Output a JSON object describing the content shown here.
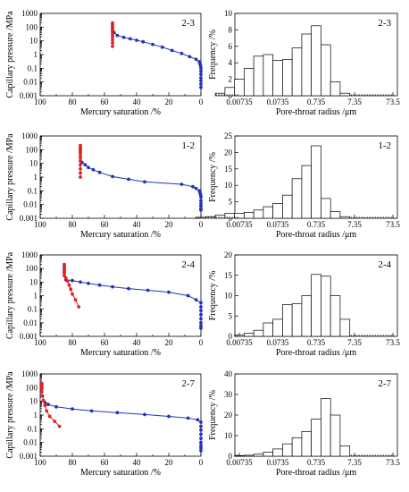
{
  "figure": {
    "left_ylabel": "Capillary pressure /MPa",
    "left_xlabel": "Mercury saturation /%",
    "right_ylabel": "Frequency /%",
    "right_xlabel": "Pore-throat radius /μm",
    "colors": {
      "drainage": "#dd2222",
      "imbibition": "#2233bb",
      "axis": "#000000"
    }
  },
  "chart_data": [
    {
      "type": "line",
      "sample": "2-3",
      "xlabel": "Mercury saturation /%",
      "ylabel": "Capillary pressure /MPa",
      "xlim": [
        100,
        0
      ],
      "ylim": [
        0.001,
        1000
      ],
      "yscale": "log",
      "xticks": [
        "100",
        "80",
        "60",
        "40",
        "20",
        "0"
      ],
      "yticks": [
        "1000",
        "100",
        "10",
        "1",
        "0.1",
        "0.01",
        "0.001"
      ],
      "series": [
        {
          "color": "#2233bb",
          "x": [
            54,
            52,
            48,
            44,
            40,
            36,
            30,
            24,
            18,
            12,
            7,
            3,
            1,
            0.5,
            0.2,
            0,
            0,
            0,
            0,
            0,
            0,
            0
          ],
          "y": [
            40,
            25,
            18,
            14,
            11,
            8.5,
            5.5,
            3.5,
            2,
            1.2,
            0.7,
            0.45,
            0.3,
            0.2,
            0.15,
            0.1,
            0.06,
            0.035,
            0.02,
            0.012,
            0.007,
            0.004
          ]
        },
        {
          "color": "#dd2222",
          "x": [
            55,
            55,
            55,
            55,
            55,
            55,
            55,
            55,
            55,
            55,
            55
          ],
          "y": [
            200,
            150,
            110,
            80,
            60,
            45,
            30,
            20,
            12,
            7,
            4
          ]
        }
      ]
    },
    {
      "type": "bar",
      "sample": "2-3",
      "xlabel": "Pore-throat radius /μm",
      "ylabel": "Frequency /%",
      "xticks": [
        "0.00735",
        "0.0735",
        "0.735",
        "7.35",
        "73.5"
      ],
      "ylim": [
        0,
        10
      ],
      "yticks": [
        "0",
        "2",
        "4",
        "6",
        "8",
        "10"
      ],
      "values": [
        0.3,
        1,
        2,
        3.3,
        4.8,
        5,
        4.3,
        4.4,
        5.8,
        7.5,
        8.5,
        6.2,
        1.7,
        0.3
      ]
    },
    {
      "type": "line",
      "sample": "1-2",
      "xlabel": "Mercury saturation /%",
      "ylabel": "Capillary pressure /MPa",
      "xlim": [
        100,
        0
      ],
      "ylim": [
        0.001,
        1000
      ],
      "yscale": "log",
      "xticks": [
        "100",
        "80",
        "60",
        "40",
        "20",
        "0"
      ],
      "yticks": [
        "1000",
        "100",
        "10",
        "1",
        "0.1",
        "0.01",
        "0.001"
      ],
      "series": [
        {
          "color": "#2233bb",
          "x": [
            74,
            72,
            70,
            67,
            63,
            55,
            45,
            35,
            12,
            5,
            3,
            1,
            0.5,
            0.2,
            0,
            0,
            0,
            0,
            0,
            0
          ],
          "y": [
            12,
            8,
            5,
            3.5,
            2.2,
            1.1,
            0.7,
            0.45,
            0.3,
            0.2,
            0.15,
            0.1,
            0.07,
            0.05,
            0.035,
            0.02,
            0.012,
            0.008,
            0.005,
            0.004
          ]
        },
        {
          "color": "#dd2222",
          "x": [
            75,
            75,
            75,
            75,
            75,
            75,
            75,
            75,
            75,
            75,
            75,
            75
          ],
          "y": [
            200,
            150,
            110,
            80,
            60,
            40,
            25,
            15,
            8,
            4,
            2,
            1
          ]
        }
      ]
    },
    {
      "type": "bar",
      "sample": "1-2",
      "xlabel": "Pore-throat radius /μm",
      "ylabel": "Frequency /%",
      "xticks": [
        "0.00735",
        "0.0735",
        "0.735",
        "7.35",
        "73.5"
      ],
      "ylim": [
        0,
        25
      ],
      "yticks": [
        "0",
        "5",
        "10",
        "15",
        "20",
        "25"
      ],
      "values": [
        0.3,
        0.5,
        1,
        1.5,
        1.5,
        1.8,
        2.5,
        3.5,
        4.5,
        7,
        12,
        16,
        22,
        6,
        2,
        0.5
      ]
    },
    {
      "type": "line",
      "sample": "2-4",
      "xlabel": "Mercury saturation /%",
      "ylabel": "Capillary pressure /MPa",
      "xlim": [
        100,
        0
      ],
      "ylim": [
        0.001,
        1000
      ],
      "yscale": "log",
      "xticks": [
        "100",
        "80",
        "60",
        "40",
        "20",
        "0"
      ],
      "yticks": [
        "1000",
        "100",
        "10",
        "1",
        "0.1",
        "0.01",
        "0.001"
      ],
      "series": [
        {
          "color": "#2233bb",
          "x": [
            84,
            80,
            75,
            70,
            63,
            55,
            45,
            33,
            20,
            8,
            3,
            0,
            0,
            0,
            0,
            0,
            0,
            0,
            0
          ],
          "y": [
            15,
            13,
            10,
            8,
            6,
            4.5,
            3.3,
            2.5,
            1.8,
            1,
            0.5,
            0.3,
            0.15,
            0.08,
            0.04,
            0.02,
            0.01,
            0.006,
            0.004
          ]
        },
        {
          "color": "#dd2222",
          "x": [
            85,
            85,
            85,
            85,
            85,
            85,
            85,
            84,
            83,
            82,
            81,
            80,
            78,
            76
          ],
          "y": [
            200,
            150,
            110,
            80,
            60,
            45,
            30,
            20,
            12,
            6,
            3,
            1.3,
            0.5,
            0.15
          ]
        }
      ]
    },
    {
      "type": "bar",
      "sample": "2-4",
      "xlabel": "Pore-throat radius /μm",
      "ylabel": "Frequency /%",
      "xticks": [
        "0.00735",
        "0.0735",
        "0.735",
        "7.35",
        "73.5"
      ],
      "ylim": [
        0,
        20
      ],
      "yticks": [
        "0",
        "5",
        "10",
        "15",
        "20"
      ],
      "values": [
        0.3,
        0.8,
        1.5,
        3.3,
        4.2,
        7.8,
        8,
        10,
        15.2,
        14.8,
        10,
        4.2
      ]
    },
    {
      "type": "line",
      "sample": "2-7",
      "xlabel": "Mercury saturation /%",
      "ylabel": "Capillary pressure /MPa",
      "xlim": [
        100,
        0
      ],
      "ylim": [
        0.001,
        1000
      ],
      "yscale": "log",
      "xticks": [
        "100",
        "80",
        "60",
        "40",
        "20",
        "0"
      ],
      "yticks": [
        "1000",
        "100",
        "10",
        "1",
        "0.1",
        "0.01",
        "0.001"
      ],
      "series": [
        {
          "color": "#2233bb",
          "x": [
            97,
            95,
            90,
            80,
            68,
            52,
            35,
            20,
            8,
            2,
            0,
            0,
            0,
            0,
            0,
            0,
            0,
            0,
            0
          ],
          "y": [
            8,
            6,
            4,
            2.8,
            2,
            1.5,
            1.1,
            0.8,
            0.6,
            0.45,
            0.3,
            0.15,
            0.08,
            0.04,
            0.02,
            0.01,
            0.006,
            0.004,
            0.0025
          ]
        },
        {
          "color": "#dd2222",
          "x": [
            99,
            99,
            99,
            99,
            99,
            98.5,
            98,
            97,
            96,
            94,
            91,
            88
          ],
          "y": [
            200,
            150,
            110,
            80,
            50,
            25,
            12,
            5,
            2,
            0.8,
            0.35,
            0.15
          ]
        }
      ]
    },
    {
      "type": "bar",
      "sample": "2-7",
      "xlabel": "Pore-throat radius /μm",
      "ylabel": "Frequency /%",
      "xticks": [
        "0.00735",
        "0.0735",
        "0.735",
        "7.35",
        "73.5"
      ],
      "ylim": [
        0,
        40
      ],
      "yticks": [
        "0",
        "10",
        "20",
        "30",
        "40"
      ],
      "values": [
        0.3,
        0.5,
        1,
        2,
        3.5,
        6,
        9,
        12,
        18,
        28,
        20,
        5
      ]
    }
  ]
}
